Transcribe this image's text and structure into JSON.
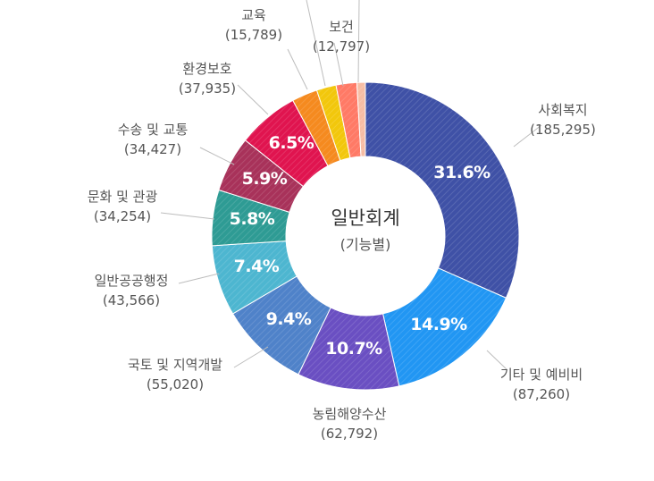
{
  "chart_data": {
    "type": "pie",
    "title": "일반회계",
    "subtitle": "(기능별)",
    "slices": [
      {
        "label": "사회복지",
        "value": "185,295",
        "amount": 185295,
        "percent": "31.6%",
        "color": "#3f51a6"
      },
      {
        "label": "기타 및 예비비",
        "value": "87,260",
        "amount": 87260,
        "percent": "14.9%",
        "color": "#2196f3"
      },
      {
        "label": "농림해양수산",
        "value": "62,792",
        "amount": 62792,
        "percent": "10.7%",
        "color": "#6a4fc2"
      },
      {
        "label": "국토 및 지역개발",
        "value": "55,020",
        "amount": 55020,
        "percent": "9.4%",
        "color": "#4f82c9"
      },
      {
        "label": "일반공공행정",
        "value": "43,566",
        "amount": 43566,
        "percent": "7.4%",
        "color": "#4db6d0"
      },
      {
        "label": "문화 및 관광",
        "value": "34,254",
        "amount": 34254,
        "percent": "5.8%",
        "color": "#2e9b94"
      },
      {
        "label": "수송 및 교통",
        "value": "34,427",
        "amount": 34427,
        "percent": "5.9%",
        "color": "#a8325a"
      },
      {
        "label": "환경보호",
        "value": "37,935",
        "amount": 37935,
        "percent": "6.5%",
        "color": "#e0144f"
      },
      {
        "label": "교육",
        "value": "15,789",
        "amount": 15789,
        "percent": "",
        "color": "#f58a1f"
      },
      {
        "label": "",
        "value": "",
        "amount": 12100,
        "percent": "",
        "color": "#f2c70c"
      },
      {
        "label": "보건",
        "value": "12,797",
        "amount": 12797,
        "percent": "",
        "color": "#ff7a66"
      },
      {
        "label": "",
        "value": "",
        "amount": 5200,
        "percent": "",
        "color": "#f7bda4"
      }
    ]
  }
}
